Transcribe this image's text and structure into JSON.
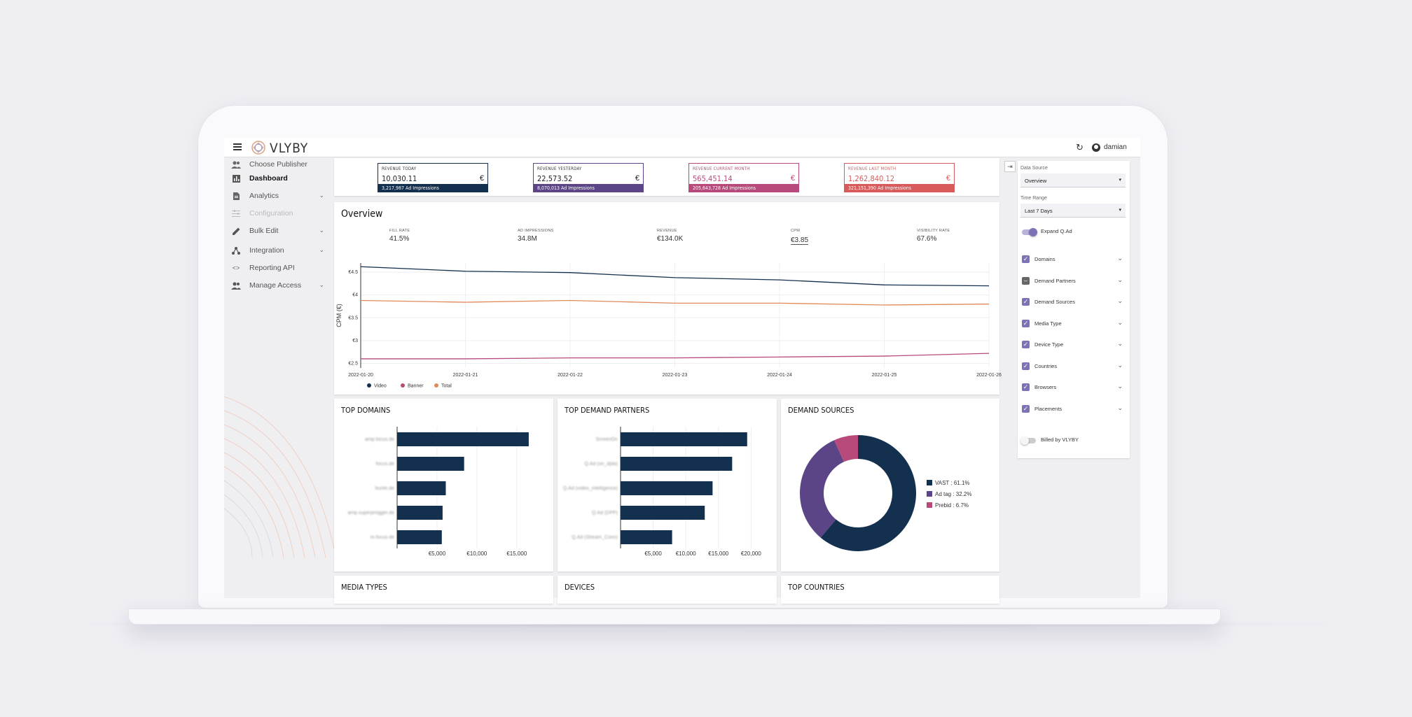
{
  "header": {
    "brand": "VLYBY",
    "user": "damian"
  },
  "sidebar": {
    "items": [
      {
        "label": "Choose Publisher",
        "icon": "people-icon"
      },
      {
        "label": "Dashboard",
        "icon": "bar-chart-icon"
      },
      {
        "label": "Analytics",
        "icon": "document-icon"
      },
      {
        "label": "Configuration",
        "icon": "sliders-icon"
      },
      {
        "label": "Bulk Edit",
        "icon": "pencil-icon"
      },
      {
        "label": "Integration",
        "icon": "integration-icon"
      },
      {
        "label": "Reporting API",
        "icon": "code-icon"
      },
      {
        "label": "Manage Access",
        "icon": "people-icon"
      }
    ]
  },
  "kpis": [
    {
      "label": "REVENUE TODAY",
      "value": "10,030.11",
      "currency": "€",
      "sub": "3,217,987 Ad Impressions",
      "color": "#14304f"
    },
    {
      "label": "REVENUE YESTERDAY",
      "value": "22,573.52",
      "currency": "€",
      "sub": "8,070,013 Ad Impressions",
      "color": "#5b4587"
    },
    {
      "label": "REVENUE CURRENT MONTH",
      "value": "565,451.14",
      "currency": "€",
      "sub": "205,643,728 Ad Impressions",
      "color": "#b74a7a"
    },
    {
      "label": "REVENUE LAST MONTH",
      "value": "1,262,840.12",
      "currency": "€",
      "sub": "321,151,390 Ad Impressions",
      "color": "#d85a5a"
    }
  ],
  "overview": {
    "title": "Overview",
    "metrics": [
      {
        "label": "FILL RATE",
        "value": "41.5%"
      },
      {
        "label": "AD IMPRESSIONS",
        "value": "34.8M"
      },
      {
        "label": "REVENUE",
        "value": "€134.0K"
      },
      {
        "label": "CPM",
        "value": "€3.85"
      },
      {
        "label": "VISIBILITY RATE",
        "value": "67.6%"
      }
    ]
  },
  "panels": {
    "top_domains": "TOP DOMAINS",
    "top_demand_partners": "TOP DEMAND PARTNERS",
    "demand_sources": "DEMAND SOURCES",
    "media_types": "MEDIA TYPES",
    "devices": "DEVICES",
    "top_countries": "TOP COUNTRIES"
  },
  "filters": {
    "data_source_label": "Data Source",
    "data_source_value": "Overview",
    "time_range_label": "Time Range",
    "time_range_value": "Last 7 Days",
    "expand_label": "Expand Q.Ad",
    "rows": [
      {
        "label": "Domains",
        "state": "checked"
      },
      {
        "label": "Demand Partners",
        "state": "indeterminate"
      },
      {
        "label": "Demand Sources",
        "state": "checked"
      },
      {
        "label": "Media Type",
        "state": "checked"
      },
      {
        "label": "Device Type",
        "state": "checked"
      },
      {
        "label": "Countries",
        "state": "checked"
      },
      {
        "label": "Browsers",
        "state": "checked"
      },
      {
        "label": "Placements",
        "state": "checked"
      }
    ],
    "billed_label": "Billed by VLYBY"
  },
  "colors": {
    "navy": "#14304f",
    "purple": "#5b4587",
    "pink": "#b74a7a",
    "orange": "#e08a5a",
    "accent": "#7b73b5"
  },
  "chart_data": [
    {
      "type": "line",
      "title": "",
      "ylabel": "CPM (€)",
      "x": [
        "2022-01-20",
        "2022-01-21",
        "2022-01-22",
        "2022-01-23",
        "2022-01-24",
        "2022-01-25",
        "2022-01-26"
      ],
      "ylim": [
        2.4,
        4.7
      ],
      "yticks": [
        "€2.5",
        "€3",
        "€3.5",
        "€4",
        "€4.5"
      ],
      "ytick_values": [
        2.5,
        3,
        3.5,
        4,
        4.5
      ],
      "series": [
        {
          "name": "Video",
          "color": "#14304f",
          "values": [
            4.62,
            4.52,
            4.49,
            4.38,
            4.33,
            4.22,
            4.2
          ]
        },
        {
          "name": "Banner",
          "color": "#b74a7a",
          "values": [
            2.6,
            2.6,
            2.62,
            2.62,
            2.64,
            2.66,
            2.72
          ]
        },
        {
          "name": "Total",
          "color": "#e08a5a",
          "values": [
            3.88,
            3.84,
            3.88,
            3.82,
            3.82,
            3.78,
            3.8
          ]
        }
      ]
    },
    {
      "type": "bar",
      "title": "TOP DOMAINS",
      "orientation": "horizontal",
      "categories": [
        "amp.focus.de",
        "focus.de",
        "bunte.de",
        "amp.superprogger.de",
        "m.focus.de"
      ],
      "values": [
        16500,
        8400,
        6100,
        5700,
        5600
      ],
      "xlim": [
        0,
        18000
      ],
      "xticks": [
        "€5,000",
        "€10,000",
        "€15,000"
      ],
      "xtick_values": [
        5000,
        10000,
        15000
      ]
    },
    {
      "type": "bar",
      "title": "TOP DEMAND PARTNERS",
      "orientation": "horizontal",
      "categories": [
        "ScreenOn",
        "Q.Ad (on_dpla)",
        "Q.Ad (video_intelligence)",
        "Q.Ad (DPP)",
        "Q.Ad (Stream_Conn)"
      ],
      "values": [
        19400,
        17100,
        14100,
        12900,
        7900
      ],
      "xlim": [
        0,
        22000
      ],
      "xticks": [
        "€5,000",
        "€10,000",
        "€15,000",
        "€20,000"
      ],
      "xtick_values": [
        5000,
        10000,
        15000,
        20000
      ]
    },
    {
      "type": "pie",
      "title": "DEMAND SOURCES",
      "donut": true,
      "labels": [
        "VAST : 61.1%",
        "Ad tag : 32.2%",
        "Prebid : 6.7%"
      ],
      "values": [
        61.1,
        32.2,
        6.7
      ],
      "colors": [
        "#14304f",
        "#5b4587",
        "#b74a7a"
      ]
    }
  ]
}
